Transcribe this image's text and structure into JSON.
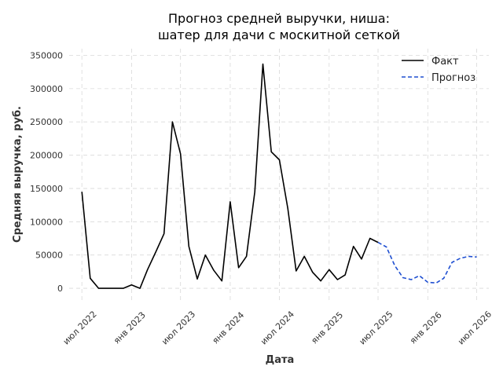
{
  "chart_data": {
    "type": "line",
    "title": [
      "Прогноз средней выручки, ниша:",
      "шатер для дачи с москитной сеткой"
    ],
    "xlabel": "Дата",
    "ylabel": "Средняя выручка, руб.",
    "ylim": [
      -20000,
      360000
    ],
    "yticks": [
      0,
      50000,
      100000,
      150000,
      200000,
      250000,
      300000,
      350000
    ],
    "xlim": [
      "2022-05-15",
      "2026-08-15"
    ],
    "xticks": [
      {
        "date": "2022-07-01",
        "label": "июл 2022"
      },
      {
        "date": "2023-01-01",
        "label": "янв 2023"
      },
      {
        "date": "2023-07-01",
        "label": "июл 2023"
      },
      {
        "date": "2024-01-01",
        "label": "янв 2024"
      },
      {
        "date": "2024-07-01",
        "label": "июл 2024"
      },
      {
        "date": "2025-01-01",
        "label": "янв 2025"
      },
      {
        "date": "2025-07-01",
        "label": "июл 2025"
      },
      {
        "date": "2026-01-01",
        "label": "янв 2026"
      },
      {
        "date": "2026-07-01",
        "label": "июл 2026"
      }
    ],
    "grid": true,
    "legend_position": "top-right",
    "series": [
      {
        "name": "Факт",
        "color": "#000000",
        "style": "solid",
        "x": [
          "2022-07-01",
          "2022-08-01",
          "2022-09-01",
          "2022-10-01",
          "2022-11-01",
          "2022-12-01",
          "2023-01-01",
          "2023-02-01",
          "2023-03-01",
          "2023-04-01",
          "2023-05-01",
          "2023-06-01",
          "2023-07-01",
          "2023-08-01",
          "2023-09-01",
          "2023-10-01",
          "2023-11-01",
          "2023-12-01",
          "2024-01-01",
          "2024-02-01",
          "2024-03-01",
          "2024-04-01",
          "2024-05-01",
          "2024-06-01",
          "2024-07-01",
          "2024-08-01",
          "2024-09-01",
          "2024-10-01",
          "2024-11-01",
          "2024-12-01",
          "2025-01-01",
          "2025-02-01",
          "2025-03-01",
          "2025-04-01",
          "2025-05-01",
          "2025-06-01",
          "2025-07-01"
        ],
        "y": [
          145000,
          15000,
          0,
          0,
          0,
          0,
          5000,
          0,
          28000,
          55000,
          82000,
          250000,
          202000,
          63000,
          14000,
          50000,
          27000,
          11000,
          130000,
          31000,
          48000,
          145000,
          337000,
          205000,
          193000,
          120000,
          26000,
          48000,
          24000,
          11000,
          28000,
          13000,
          20000,
          63000,
          44000,
          75000,
          69000
        ]
      },
      {
        "name": "Прогноз",
        "color": "#1f4fd1",
        "style": "dashed",
        "x": [
          "2025-07-01",
          "2025-08-01",
          "2025-09-01",
          "2025-10-01",
          "2025-11-01",
          "2025-12-01",
          "2026-01-01",
          "2026-02-01",
          "2026-03-01",
          "2026-04-01",
          "2026-05-01",
          "2026-06-01",
          "2026-07-01"
        ],
        "y": [
          69000,
          62000,
          34000,
          16000,
          13000,
          19000,
          9000,
          8000,
          15000,
          39000,
          45000,
          48000,
          47000
        ]
      }
    ]
  }
}
